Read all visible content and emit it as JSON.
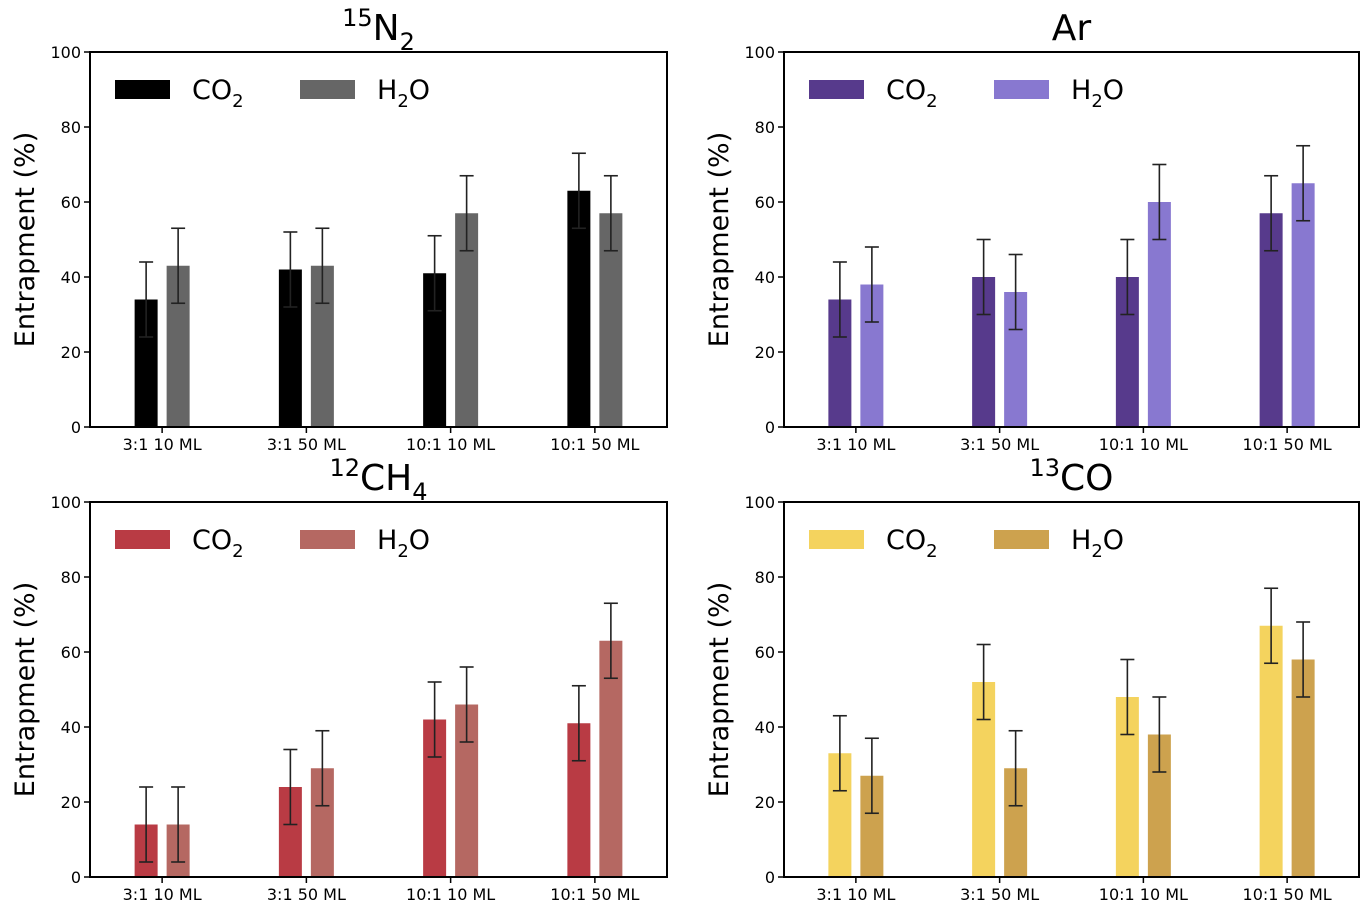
{
  "chart_data": [
    {
      "type": "bar",
      "title": {
        "sup": "15",
        "base": "N",
        "sub": "2"
      },
      "ylabel": "Entrapment (%)",
      "ylim": [
        0,
        100
      ],
      "yticks": [
        0,
        20,
        40,
        60,
        80,
        100
      ],
      "categories": [
        "3:1 10 ML",
        "3:1 50 ML",
        "10:1 10 ML",
        "10:1 50 ML"
      ],
      "legend_position": "top-left",
      "series": [
        {
          "name": {
            "base": "CO",
            "sub": "2",
            "rest": ""
          },
          "color": "#000000",
          "values": [
            34,
            42,
            41,
            63
          ],
          "errors": [
            10,
            10,
            10,
            10
          ]
        },
        {
          "name": {
            "base": "H",
            "sub": "2",
            "rest": "O"
          },
          "color": "#666666",
          "values": [
            43,
            43,
            57,
            57
          ],
          "errors": [
            10,
            10,
            10,
            10
          ]
        }
      ]
    },
    {
      "type": "bar",
      "title": {
        "sup": "",
        "base": "Ar",
        "sub": ""
      },
      "ylabel": "Entrapment (%)",
      "ylim": [
        0,
        100
      ],
      "yticks": [
        0,
        20,
        40,
        60,
        80,
        100
      ],
      "categories": [
        "3:1 10 ML",
        "3:1 50 ML",
        "10:1 10 ML",
        "10:1 50 ML"
      ],
      "legend_position": "top-left",
      "series": [
        {
          "name": {
            "base": "CO",
            "sub": "2",
            "rest": ""
          },
          "color": "#573a8c",
          "values": [
            34,
            40,
            40,
            57
          ],
          "errors": [
            10,
            10,
            10,
            10
          ]
        },
        {
          "name": {
            "base": "H",
            "sub": "2",
            "rest": "O"
          },
          "color": "#8878d0",
          "values": [
            38,
            36,
            60,
            65
          ],
          "errors": [
            10,
            10,
            10,
            10
          ]
        }
      ]
    },
    {
      "type": "bar",
      "title": {
        "sup": "12",
        "base": "CH",
        "sub": "4"
      },
      "ylabel": "Entrapment (%)",
      "ylim": [
        0,
        100
      ],
      "yticks": [
        0,
        20,
        40,
        60,
        80,
        100
      ],
      "categories": [
        "3:1 10 ML",
        "3:1 50 ML",
        "10:1 10 ML",
        "10:1 50 ML"
      ],
      "legend_position": "top-left",
      "series": [
        {
          "name": {
            "base": "CO",
            "sub": "2",
            "rest": ""
          },
          "color": "#b93b44",
          "values": [
            14,
            24,
            42,
            41
          ],
          "errors": [
            10,
            10,
            10,
            10
          ]
        },
        {
          "name": {
            "base": "H",
            "sub": "2",
            "rest": "O"
          },
          "color": "#b56862",
          "values": [
            14,
            29,
            46,
            63
          ],
          "errors": [
            10,
            10,
            10,
            10
          ]
        }
      ]
    },
    {
      "type": "bar",
      "title": {
        "sup": "13",
        "base": "CO",
        "sub": ""
      },
      "ylabel": "Entrapment (%)",
      "ylim": [
        0,
        100
      ],
      "yticks": [
        0,
        20,
        40,
        60,
        80,
        100
      ],
      "categories": [
        "3:1 10 ML",
        "3:1 50 ML",
        "10:1 10 ML",
        "10:1 50 ML"
      ],
      "legend_position": "top-left",
      "series": [
        {
          "name": {
            "base": "CO",
            "sub": "2",
            "rest": ""
          },
          "color": "#f4d35e",
          "values": [
            33,
            52,
            48,
            67
          ],
          "errors": [
            10,
            10,
            10,
            10
          ]
        },
        {
          "name": {
            "base": "H",
            "sub": "2",
            "rest": "O"
          },
          "color": "#cda24e",
          "values": [
            27,
            29,
            38,
            58
          ],
          "errors": [
            10,
            10,
            10,
            10
          ]
        }
      ]
    }
  ]
}
